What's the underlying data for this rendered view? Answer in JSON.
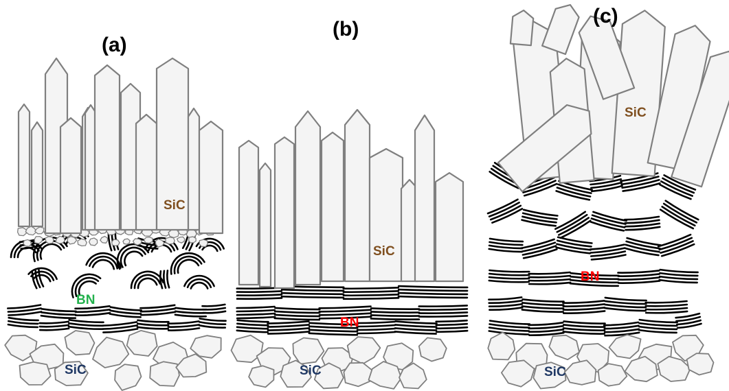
{
  "panels": [
    {
      "id": "a",
      "label": "(a)",
      "top_label": "SiC",
      "middle_label": "BN",
      "bottom_label": "SiC",
      "middle_texture": "turbostratic (curved, disordered BN)",
      "interlayer": "fine SiC grains"
    },
    {
      "id": "b",
      "label": "(b)",
      "top_label": "SiC",
      "middle_label": "BN",
      "bottom_label": "SiC",
      "middle_texture": "parallel layered BN",
      "interlayer": "none"
    },
    {
      "id": "c",
      "label": "(c)",
      "top_label": "SiC",
      "middle_label": "BN",
      "bottom_label": "SiC",
      "middle_texture": "layered BN with tilted domains",
      "interlayer": "none"
    }
  ],
  "colors": {
    "top_sic_label": "#7f4f1f",
    "bn_green": "#22b14c",
    "bn_red": "#ff0000",
    "bottom_sic_label": "#1f3864",
    "crystal_fill": "#f4f4f4",
    "crystal_stroke": "#7f7f7f",
    "bn_layers": "#000000"
  }
}
